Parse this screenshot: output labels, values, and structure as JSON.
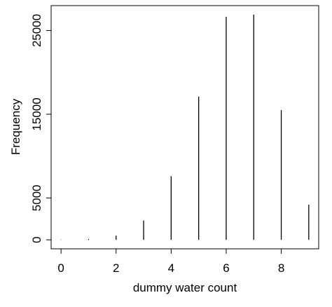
{
  "chart_data": {
    "type": "bar",
    "x_label": "dummy water count",
    "y_label": "Frequency",
    "x": [
      0,
      1,
      2,
      3,
      4,
      5,
      6,
      7,
      8,
      9
    ],
    "values": [
      30,
      100,
      500,
      2300,
      7600,
      17100,
      26650,
      26900,
      15500,
      4200
    ],
    "color": "#000000",
    "xlim": [
      -0.36,
      9.36
    ],
    "xticks": [
      0,
      2,
      4,
      6,
      8
    ],
    "ylim": [
      -1076,
      27976
    ],
    "yticks": [
      0,
      5000,
      15000,
      25000
    ]
  }
}
